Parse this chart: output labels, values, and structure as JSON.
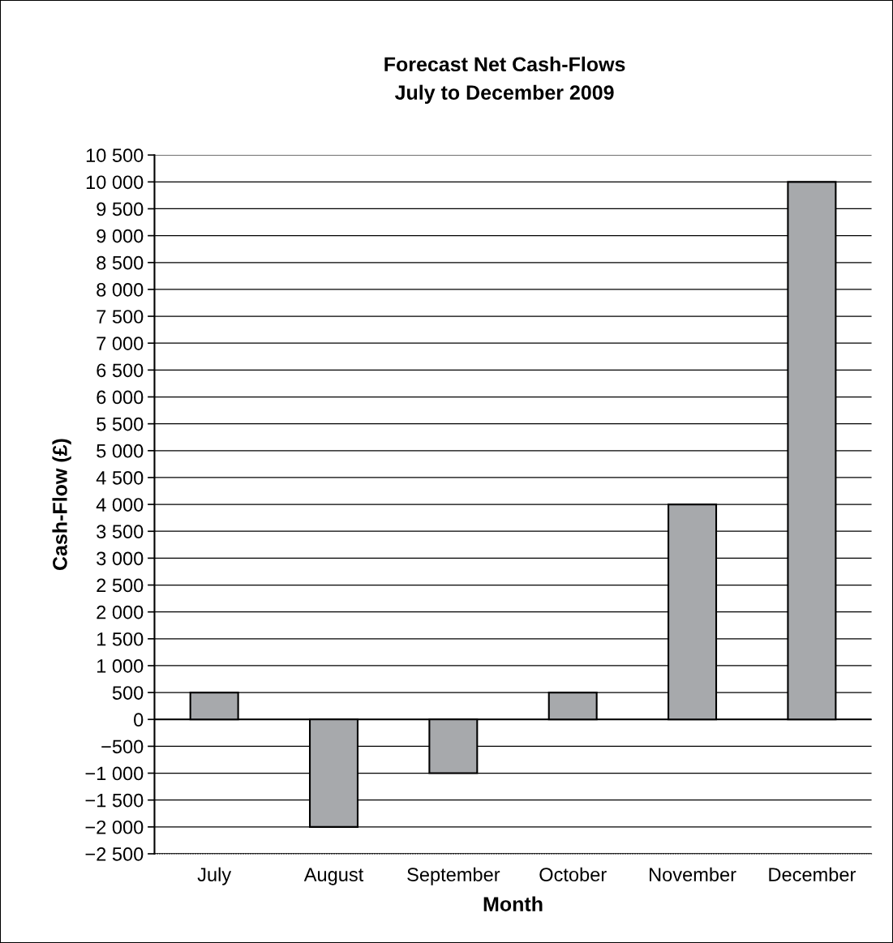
{
  "chart_data": {
    "type": "bar",
    "title": "Forecast Net Cash-Flows",
    "subtitle": "July to December 2009",
    "xlabel": "Month",
    "ylabel": "Cash-Flow (£)",
    "categories": [
      "July",
      "August",
      "September",
      "October",
      "November",
      "December"
    ],
    "values": [
      500,
      -2000,
      -1000,
      500,
      4000,
      10000
    ],
    "color": "#a7a9ac",
    "ylim": [
      -2500,
      10500
    ],
    "yticks": [
      {
        "value": -2500,
        "label": "−2 500"
      },
      {
        "value": -2000,
        "label": "−2 000"
      },
      {
        "value": -1500,
        "label": "−1 500"
      },
      {
        "value": -1000,
        "label": "−1 000"
      },
      {
        "value": -500,
        "label": "−500"
      },
      0,
      500,
      {
        "value": 1000,
        "label": "1 000"
      },
      {
        "value": 1500,
        "label": "1 500"
      },
      {
        "value": 2000,
        "label": "2 000"
      },
      {
        "value": 2500,
        "label": "2 500"
      },
      {
        "value": 3000,
        "label": "3 000"
      },
      {
        "value": 3500,
        "label": "3 500"
      },
      {
        "value": 4000,
        "label": "4 000"
      },
      {
        "value": 4500,
        "label": "4 500"
      },
      {
        "value": 5000,
        "label": "5 000"
      },
      {
        "value": 5500,
        "label": "5 500"
      },
      {
        "value": 6000,
        "label": "6 000"
      },
      {
        "value": 6500,
        "label": "6 500"
      },
      {
        "value": 7000,
        "label": "7 000"
      },
      {
        "value": 7500,
        "label": "7 500"
      },
      {
        "value": 8000,
        "label": "8 000"
      },
      {
        "value": 8500,
        "label": "8 500"
      },
      {
        "value": 9000,
        "label": "9 000"
      },
      {
        "value": 9500,
        "label": "9 500"
      },
      {
        "value": 10000,
        "label": "10 000"
      },
      {
        "value": 10500,
        "label": "10 500"
      }
    ],
    "grid": "y"
  }
}
